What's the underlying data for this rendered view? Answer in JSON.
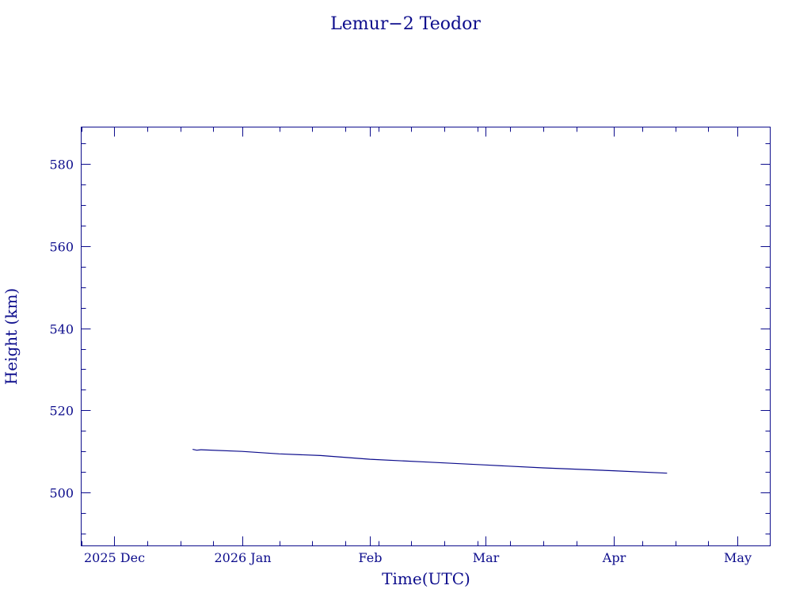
{
  "chart_data": {
    "type": "line",
    "title": "Lemur−2 Teodor",
    "xlabel": "Time(UTC)",
    "ylabel": "Height (km)",
    "x_scale": "date",
    "xlim": [
      "2025-11-23",
      "2026-05-09"
    ],
    "ylim": [
      487,
      589
    ],
    "x_ticks": [
      {
        "date": "2025-12-01",
        "label": "2025 Dec"
      },
      {
        "date": "2026-01-01",
        "label": "2026 Jan"
      },
      {
        "date": "2026-02-01",
        "label": "Feb"
      },
      {
        "date": "2026-03-01",
        "label": "Mar"
      },
      {
        "date": "2026-04-01",
        "label": "Apr"
      },
      {
        "date": "2026-05-01",
        "label": "May"
      }
    ],
    "y_ticks": [
      500,
      520,
      540,
      560,
      580
    ],
    "y_minor_step": 5,
    "x_minor_step_days": 8,
    "grid": false,
    "series": [
      {
        "values": [
          {
            "x": "2025-12-20",
            "y": 510.5
          },
          {
            "x": "2025-12-21",
            "y": 510.3
          },
          {
            "x": "2025-12-22",
            "y": 510.4
          },
          {
            "x": "2026-01-01",
            "y": 510.0
          },
          {
            "x": "2026-01-10",
            "y": 509.4
          },
          {
            "x": "2026-01-20",
            "y": 509.0
          },
          {
            "x": "2026-02-01",
            "y": 508.1
          },
          {
            "x": "2026-02-15",
            "y": 507.4
          },
          {
            "x": "2026-03-01",
            "y": 506.7
          },
          {
            "x": "2026-03-15",
            "y": 506.0
          },
          {
            "x": "2026-04-01",
            "y": 505.3
          },
          {
            "x": "2026-04-14",
            "y": 504.7
          }
        ]
      }
    ]
  }
}
